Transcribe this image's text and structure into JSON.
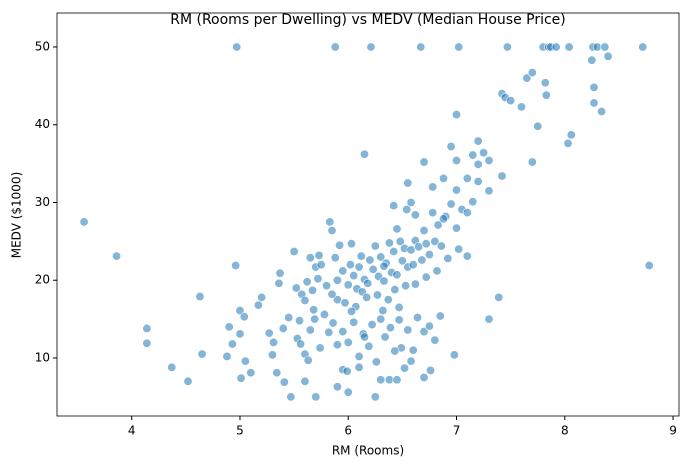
{
  "chart_data": {
    "type": "scatter",
    "title": "RM (Rooms per Dwelling) vs MEDV (Median House Price)",
    "x_label": "RM (Rooms)",
    "y_label": "MEDV ($1000)",
    "color": "#1f77b4",
    "xlim": [
      3.31,
      9.055
    ],
    "xticks": [
      4,
      5,
      6,
      7,
      8,
      9
    ],
    "ylim": [
      2.54,
      54.37
    ],
    "yticks": [
      10,
      20,
      30,
      40,
      50
    ],
    "x": [
      3.56,
      3.86,
      4.14,
      4.14,
      4.37,
      4.52,
      4.63,
      4.65,
      4.88,
      4.9,
      4.96,
      4.97,
      5.0,
      4.93,
      5.0,
      5.01,
      5.04,
      5.05,
      5.1,
      5.17,
      5.2,
      5.27,
      5.3,
      5.31,
      5.34,
      5.36,
      5.37,
      5.4,
      5.41,
      5.45,
      5.47,
      5.5,
      5.53,
      5.56,
      5.57,
      5.6,
      5.6,
      5.6,
      5.65,
      5.7,
      5.73,
      5.83,
      5.85,
      5.88,
      5.9,
      5.9,
      5.95,
      5.99,
      6.0,
      6.15,
      6.21,
      6.3,
      6.38,
      6.45,
      6.49,
      6.54,
      6.55,
      6.58,
      6.67,
      6.76,
      6.7,
      6.98,
      7.02,
      7.3,
      7.39,
      7.47,
      7.42,
      7.45,
      7.5,
      7.6,
      7.65,
      7.7,
      7.75,
      7.8,
      7.82,
      7.83,
      7.85,
      7.87,
      7.92,
      8.04,
      8.03,
      8.06,
      8.25,
      8.26,
      8.27,
      8.27,
      8.3,
      8.34,
      8.37,
      8.4,
      8.72,
      8.78,
      7.2,
      7.25,
      7.15,
      7.3,
      7.0,
      6.95,
      7.2,
      7.1,
      7.42,
      7.0,
      6.88,
      6.78,
      6.7,
      7.0,
      7.7,
      7.3,
      5.8,
      5.9,
      5.95,
      6.0,
      6.02,
      6.05,
      6.08,
      6.1,
      6.12,
      6.15,
      6.18,
      6.2,
      6.23,
      6.25,
      6.28,
      6.3,
      6.33,
      6.35,
      6.38,
      6.4,
      6.42,
      6.45,
      6.48,
      6.5,
      6.52,
      6.55,
      6.58,
      6.6,
      6.62,
      6.65,
      6.68,
      6.7,
      6.72,
      6.75,
      6.78,
      6.8,
      6.83,
      6.86,
      6.9,
      6.95,
      7.0,
      7.05,
      7.1,
      7.15,
      7.2,
      6.88,
      6.62,
      6.42,
      5.7,
      5.75,
      5.85,
      5.88,
      5.92,
      5.97,
      6.03,
      6.07,
      6.13,
      6.17,
      6.27,
      6.32,
      6.37,
      6.43,
      6.47,
      5.78,
      5.82,
      5.86,
      5.9,
      5.95,
      6.0,
      6.05,
      6.1,
      6.14,
      6.19,
      6.22,
      6.26,
      6.3,
      6.34,
      6.39,
      6.43,
      6.47,
      6.52,
      6.55,
      6.6,
      6.64,
      6.7,
      6.75,
      6.8,
      6.85,
      5.65,
      5.68,
      5.74,
      5.63,
      5.55,
      5.52,
      5.62,
      5.67,
      5.72,
      5.69,
      6.45,
      6.25,
      6.1,
      6.58,
      6.15,
      6.03,
      6.33,
      6.53,
      6.62,
      6.72,
      6.82,
      6.92,
      7.02,
      7.1
    ],
    "values": [
      27.5,
      23.1,
      13.8,
      11.9,
      8.8,
      7.0,
      17.9,
      10.5,
      10.2,
      14.0,
      21.9,
      50,
      13.1,
      11.8,
      16.1,
      7.4,
      15.3,
      9.6,
      8.1,
      16.8,
      17.8,
      13.2,
      10.4,
      12.0,
      8.1,
      19.6,
      20.9,
      13.8,
      6.9,
      15.2,
      5.0,
      23.7,
      12.5,
      11.8,
      18.2,
      10.5,
      17.4,
      7.0,
      22.9,
      5.0,
      23.2,
      27.5,
      26.4,
      50,
      6.3,
      17.5,
      8.5,
      8.3,
      5.6,
      36.2,
      50,
      7.2,
      7.2,
      26.6,
      11.3,
      29.1,
      32.5,
      30.0,
      50,
      8.4,
      7.5,
      10.4,
      50,
      15.0,
      17.8,
      50,
      44.0,
      43.5,
      43.1,
      42.3,
      46.0,
      46.7,
      39.8,
      50,
      45.4,
      43.8,
      50,
      50,
      50,
      50,
      37.6,
      38.7,
      48.3,
      50,
      44.8,
      42.8,
      50,
      41.7,
      50,
      48.8,
      50,
      21.9,
      37.9,
      36.4,
      36.1,
      35.4,
      35.4,
      37.2,
      34.9,
      33.1,
      33.4,
      31.6,
      33.1,
      32.0,
      35.2,
      41.3,
      35.2,
      31.5,
      19.3,
      20.0,
      21.2,
      19.4,
      22.0,
      20.6,
      18.9,
      21.7,
      23.1,
      20.1,
      19.6,
      22.6,
      21.4,
      24.4,
      20.5,
      23.0,
      19.9,
      22.2,
      24.8,
      21.0,
      23.7,
      20.7,
      25.0,
      22.5,
      24.1,
      21.7,
      23.9,
      22.0,
      25.1,
      24.3,
      22.6,
      26.4,
      24.7,
      23.3,
      28.7,
      25.0,
      27.1,
      24.4,
      28.2,
      29.8,
      26.7,
      29.1,
      28.7,
      30.1,
      32.7,
      27.9,
      28.4,
      29.6,
      21.7,
      22.0,
      18.2,
      22.9,
      24.5,
      17.1,
      24.7,
      16.6,
      18.5,
      17.8,
      18.1,
      16.1,
      17.5,
      18.8,
      16.5,
      15.6,
      13.3,
      14.5,
      11.7,
      13.4,
      12.0,
      14.6,
      10.2,
      13.1,
      11.5,
      14.3,
      9.5,
      15.0,
      12.7,
      13.9,
      10.9,
      14.9,
      8.7,
      13.6,
      11.0,
      15.2,
      13.4,
      14.1,
      12.3,
      15.4,
      13.6,
      16.2,
      11.3,
      9.7,
      14.8,
      19.0,
      19.8,
      18.7,
      20.2,
      15.0,
      7.2,
      5.0,
      8.8,
      9.6,
      12.7,
      16.0,
      21.8,
      19.3,
      19.5,
      20.4,
      21.2,
      22.8,
      24.0,
      23.1
    ]
  }
}
